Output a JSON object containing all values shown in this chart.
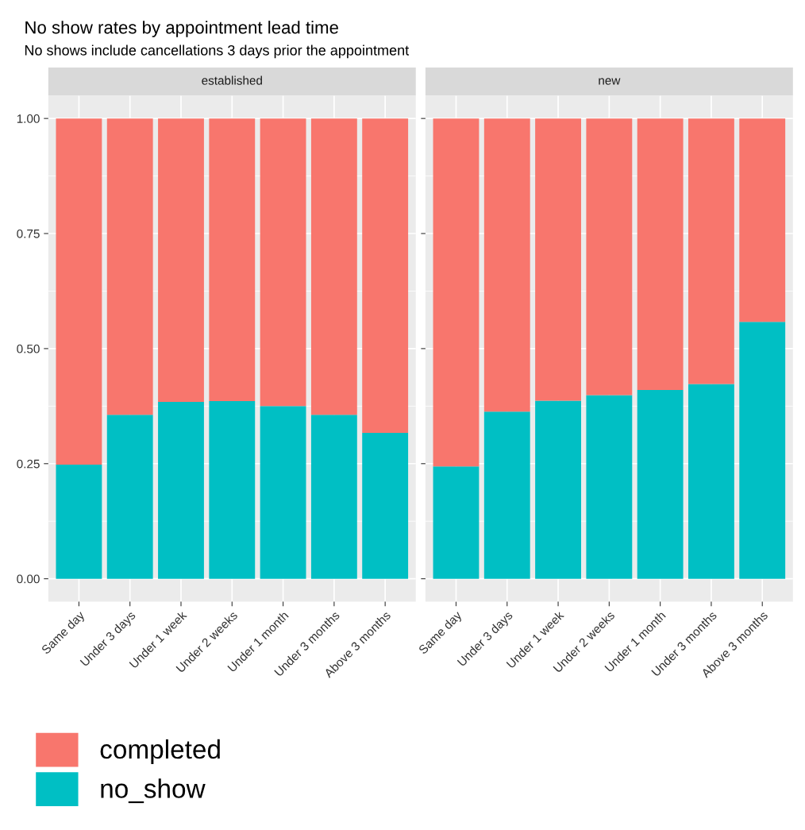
{
  "chart_data": [
    {
      "type": "bar",
      "title": "No show rates by appointment lead time",
      "subtitle": "No shows include cancellations 3 days prior the appointment",
      "annotations": [
        "established"
      ],
      "stacked": true,
      "categories": [
        "Same day",
        "Under 3 days",
        "Under 1 week",
        "Under 2 weeks",
        "Under 1 month",
        "Under 3 months",
        "Above 3 months"
      ],
      "series": [
        {
          "name": "no_show",
          "color": "#00bfc4",
          "values": [
            0.248,
            0.356,
            0.384,
            0.386,
            0.375,
            0.356,
            0.317
          ]
        },
        {
          "name": "completed",
          "color": "#f8766d",
          "values": [
            0.752,
            0.644,
            0.616,
            0.614,
            0.625,
            0.644,
            0.683
          ]
        }
      ],
      "ylim": [
        -0.05,
        1.05
      ],
      "yticks": [
        {
          "value": 0,
          "label": "0.00"
        },
        {
          "value": 0.25,
          "label": "0.25"
        },
        {
          "value": 0.5,
          "label": "0.50"
        },
        {
          "value": 0.75,
          "label": "0.75"
        },
        {
          "value": 1,
          "label": "1.00"
        }
      ],
      "grid": true,
      "legend": "bottom left"
    },
    {
      "type": "bar",
      "annotations": [
        "new"
      ],
      "stacked": true,
      "categories": [
        "Same day",
        "Under 3 days",
        "Under 1 week",
        "Under 2 weeks",
        "Under 1 month",
        "Under 3 months",
        "Above 3 months"
      ],
      "series": [
        {
          "color": "#00bfc4",
          "values": [
            0.244,
            0.363,
            0.387,
            0.399,
            0.41,
            0.423,
            0.558
          ]
        },
        {
          "color": "#f8766d",
          "values": [
            0.756,
            0.637,
            0.613,
            0.601,
            0.59,
            0.577,
            0.442
          ]
        }
      ],
      "ylim": [
        -0.05,
        1.05
      ],
      "yticks": [
        0,
        0.25,
        0.5,
        0.75,
        1
      ],
      "grid": true,
      "tick_labels": "x"
    }
  ]
}
